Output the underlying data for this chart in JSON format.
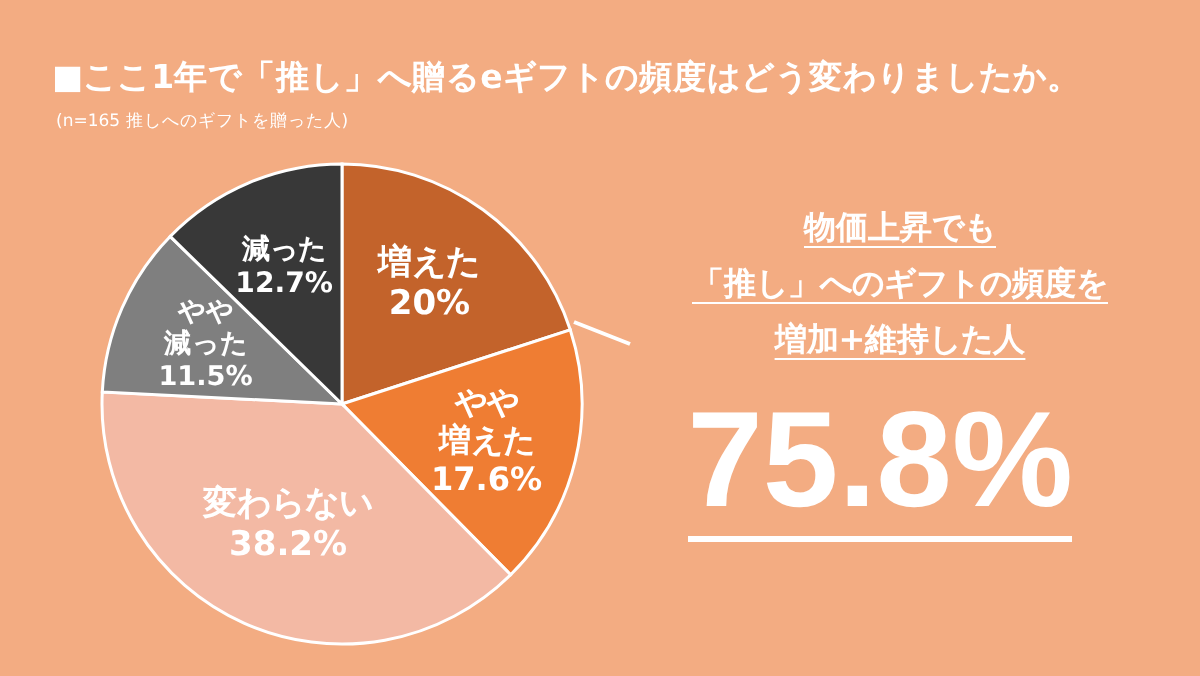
{
  "chart_data": {
    "type": "pie",
    "title": "■ここ1年で「推し」へ贈るeギフトの頻度はどう変わりましたか。",
    "subtitle": "(n=165 推しへのギフトを贈った人)",
    "categories": [
      "増えた",
      "やや増えた",
      "変わらない",
      "やや減った",
      "減った"
    ],
    "values": [
      20,
      17.6,
      38.2,
      11.5,
      12.7
    ],
    "colors": [
      "#c3632b",
      "#ef7d33",
      "#f3b9a4",
      "#7f7f7f",
      "#383838"
    ],
    "value_labels": [
      "20%",
      "17.6%",
      "38.2%",
      "11.5%",
      "12.7%"
    ],
    "annotations": [
      "物価上昇でも",
      "「推し」へのギフトの頻度を",
      "増加+維持した人",
      "75.8%"
    ]
  }
}
